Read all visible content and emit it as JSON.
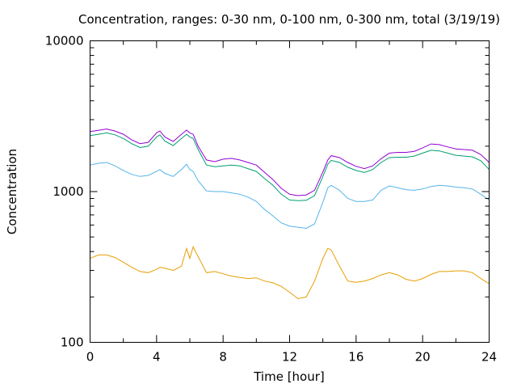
{
  "chart_data": {
    "type": "line",
    "title": "Concentration, ranges: 0-30 nm, 0-100 nm, 0-300 nm, total (3/19/19)",
    "xlabel": "Time [hour]",
    "ylabel": "Concentration",
    "xlim": [
      0,
      24
    ],
    "ylim": [
      100,
      10000
    ],
    "yscale": "log",
    "grid": false,
    "legend": "none",
    "x_ticks": [
      {
        "value": 0,
        "label": "0"
      },
      {
        "value": 4,
        "label": "4"
      },
      {
        "value": 8,
        "label": "8"
      },
      {
        "value": 12,
        "label": "12"
      },
      {
        "value": 16,
        "label": "16"
      },
      {
        "value": 20,
        "label": "20"
      },
      {
        "value": 24,
        "label": "24"
      }
    ],
    "y_ticks": [
      {
        "value": 100,
        "label": "100"
      },
      {
        "value": 1000,
        "label": "1000"
      },
      {
        "value": 10000,
        "label": "10000"
      }
    ],
    "x": [
      0,
      0.5,
      1,
      1.5,
      2,
      2.5,
      3,
      3.5,
      4,
      4.2,
      4.5,
      5,
      5.5,
      5.8,
      6,
      6.2,
      6.5,
      7,
      7.5,
      8,
      8.5,
      9,
      9.5,
      10,
      10.5,
      11,
      11.5,
      12,
      12.5,
      13,
      13.5,
      14,
      14.3,
      14.5,
      15,
      15.5,
      16,
      16.5,
      17,
      17.5,
      18,
      18.5,
      19,
      19.5,
      20,
      20.5,
      21,
      21.5,
      22,
      22.5,
      23,
      23.5,
      24
    ],
    "series": [
      {
        "color": "#9400d3",
        "values": [
          2500,
          2550,
          2600,
          2520,
          2400,
          2200,
          2080,
          2120,
          2450,
          2520,
          2300,
          2150,
          2400,
          2560,
          2450,
          2400,
          2000,
          1620,
          1580,
          1640,
          1660,
          1620,
          1560,
          1500,
          1340,
          1200,
          1050,
          960,
          940,
          950,
          1020,
          1350,
          1620,
          1730,
          1680,
          1560,
          1470,
          1420,
          1480,
          1650,
          1800,
          1820,
          1820,
          1850,
          1950,
          2070,
          2050,
          1980,
          1920,
          1900,
          1880,
          1760,
          1560
        ]
      },
      {
        "color": "#009e73",
        "values": [
          2350,
          2400,
          2450,
          2380,
          2250,
          2080,
          1960,
          2000,
          2300,
          2380,
          2160,
          2020,
          2250,
          2400,
          2300,
          2250,
          1900,
          1500,
          1460,
          1480,
          1500,
          1480,
          1420,
          1360,
          1220,
          1100,
          960,
          880,
          870,
          875,
          940,
          1260,
          1520,
          1610,
          1560,
          1450,
          1380,
          1340,
          1400,
          1560,
          1680,
          1690,
          1690,
          1720,
          1800,
          1880,
          1860,
          1800,
          1740,
          1720,
          1700,
          1600,
          1400
        ]
      },
      {
        "color": "#56b4e9",
        "values": [
          1500,
          1540,
          1560,
          1480,
          1380,
          1300,
          1260,
          1280,
          1360,
          1400,
          1320,
          1260,
          1400,
          1520,
          1400,
          1360,
          1180,
          1010,
          1000,
          1000,
          980,
          960,
          920,
          860,
          760,
          690,
          620,
          590,
          580,
          570,
          610,
          850,
          1060,
          1100,
          1020,
          900,
          860,
          860,
          880,
          1020,
          1090,
          1060,
          1030,
          1020,
          1040,
          1080,
          1100,
          1090,
          1070,
          1060,
          1040,
          960,
          880
        ]
      },
      {
        "color": "#e69f00",
        "values": [
          360,
          380,
          380,
          365,
          340,
          315,
          295,
          290,
          305,
          315,
          310,
          300,
          320,
          420,
          360,
          430,
          370,
          290,
          295,
          285,
          275,
          270,
          265,
          268,
          255,
          248,
          235,
          215,
          195,
          200,
          255,
          360,
          420,
          410,
          320,
          255,
          250,
          255,
          265,
          280,
          290,
          280,
          262,
          255,
          265,
          282,
          295,
          295,
          298,
          298,
          290,
          265,
          245
        ]
      }
    ]
  }
}
